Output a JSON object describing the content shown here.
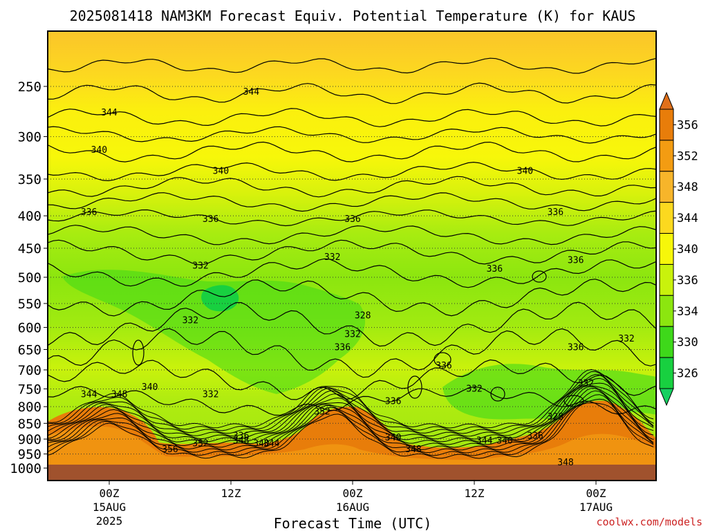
{
  "chart_data": {
    "type": "contour",
    "title": "2025081418 NAM3KM Forecast Equiv. Potential Temperature (K) for KAUS",
    "xlabel": "Forecast Time (UTC)",
    "ylabel": "",
    "y_scale": "log-pressure",
    "y_reversed": true,
    "ylim": [
      1000,
      200
    ],
    "y_ticks": [
      250,
      300,
      350,
      400,
      450,
      500,
      550,
      600,
      650,
      700,
      750,
      800,
      850,
      900,
      950,
      1000
    ],
    "x_ticks": [
      {
        "time": "2025-08-15 00Z",
        "line1": "00Z",
        "line2": "15AUG",
        "line3": "2025"
      },
      {
        "time": "2025-08-15 12Z",
        "line1": "12Z",
        "line2": "",
        "line3": ""
      },
      {
        "time": "2025-08-16 00Z",
        "line1": "00Z",
        "line2": "16AUG",
        "line3": ""
      },
      {
        "time": "2025-08-16 12Z",
        "line1": "12Z",
        "line2": "",
        "line3": ""
      },
      {
        "time": "2025-08-17 00Z",
        "line1": "00Z",
        "line2": "17AUG",
        "line3": ""
      }
    ],
    "colorbar": {
      "levels": [
        356,
        352,
        348,
        344,
        340,
        336,
        334,
        330,
        326
      ],
      "colors": [
        "#e87d0a",
        "#f39c12",
        "#f7b52a",
        "#fcd91f",
        "#f7f70a",
        "#c9f20c",
        "#8ce60f",
        "#3ed81a",
        "#18d040"
      ],
      "cap_top": "#e0701a",
      "cap_bottom": "#16d060"
    },
    "contour_levels": [
      326,
      328,
      330,
      332,
      334,
      336,
      338,
      340,
      342,
      344,
      346,
      348,
      350,
      352,
      354,
      356
    ],
    "contour_labels": [
      {
        "text": "344",
        "time": "2025-08-15 00Z",
        "p": 275
      },
      {
        "text": "344",
        "time": "2025-08-15 14Z",
        "p": 255
      },
      {
        "text": "340",
        "time": "2025-08-14 23Z",
        "p": 315
      },
      {
        "text": "340",
        "time": "2025-08-15 11Z",
        "p": 340
      },
      {
        "text": "340",
        "time": "2025-08-16 17Z",
        "p": 340
      },
      {
        "text": "336",
        "time": "2025-08-14 22Z",
        "p": 395
      },
      {
        "text": "336",
        "time": "2025-08-15 10Z",
        "p": 405
      },
      {
        "text": "336",
        "time": "2025-08-16 00Z",
        "p": 405
      },
      {
        "text": "336",
        "time": "2025-08-16 20Z",
        "p": 395
      },
      {
        "text": "332",
        "time": "2025-08-15 09Z",
        "p": 480
      },
      {
        "text": "332",
        "time": "2025-08-15 22Z",
        "p": 465
      },
      {
        "text": "336",
        "time": "2025-08-16 14Z",
        "p": 485
      },
      {
        "text": "336",
        "time": "2025-08-16 22Z",
        "p": 470
      },
      {
        "text": "332",
        "time": "2025-08-15 08Z",
        "p": 585
      },
      {
        "text": "328",
        "time": "2025-08-16 01Z",
        "p": 575
      },
      {
        "text": "332",
        "time": "2025-08-16 00Z",
        "p": 615
      },
      {
        "text": "336",
        "time": "2025-08-15 23Z",
        "p": 645
      },
      {
        "text": "336",
        "time": "2025-08-16 09Z",
        "p": 690
      },
      {
        "text": "336",
        "time": "2025-08-16 22Z",
        "p": 645
      },
      {
        "text": "332",
        "time": "2025-08-17 03Z",
        "p": 625
      },
      {
        "text": "340",
        "time": "2025-08-15 04Z",
        "p": 745
      },
      {
        "text": "344",
        "time": "2025-08-14 22Z",
        "p": 765
      },
      {
        "text": "348",
        "time": "2025-08-15 01Z",
        "p": 765
      },
      {
        "text": "332",
        "time": "2025-08-15 10Z",
        "p": 765
      },
      {
        "text": "336",
        "time": "2025-08-16 04Z",
        "p": 785
      },
      {
        "text": "332",
        "time": "2025-08-16 12Z",
        "p": 750
      },
      {
        "text": "332",
        "time": "2025-08-16 23Z",
        "p": 735
      },
      {
        "text": "352",
        "time": "2025-08-15 21Z",
        "p": 815
      },
      {
        "text": "328",
        "time": "2025-08-16 20Z",
        "p": 830
      },
      {
        "text": "336",
        "time": "2025-08-15 13Z",
        "p": 890
      },
      {
        "text": "348",
        "time": "2025-08-15 13Z",
        "p": 905
      },
      {
        "text": "340",
        "time": "2025-08-15 15Z",
        "p": 915
      },
      {
        "text": "344",
        "time": "2025-08-15 16Z",
        "p": 915
      },
      {
        "text": "352",
        "time": "2025-08-15 09Z",
        "p": 915
      },
      {
        "text": "356",
        "time": "2025-08-15 06Z",
        "p": 935
      },
      {
        "text": "340",
        "time": "2025-08-16 04Z",
        "p": 895
      },
      {
        "text": "348",
        "time": "2025-08-16 06Z",
        "p": 935
      },
      {
        "text": "344",
        "time": "2025-08-16 13Z",
        "p": 905
      },
      {
        "text": "340",
        "time": "2025-08-16 15Z",
        "p": 905
      },
      {
        "text": "336",
        "time": "2025-08-16 18Z",
        "p": 890
      },
      {
        "text": "348",
        "time": "2025-08-16 21Z",
        "p": 980
      }
    ]
  },
  "watermark": "coolwx.com/models"
}
